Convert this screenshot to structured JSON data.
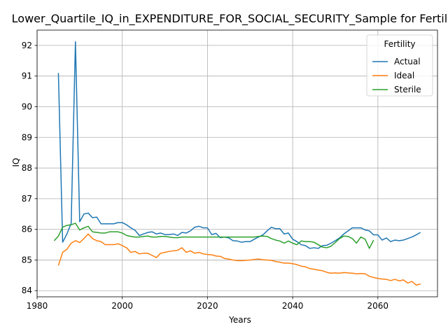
{
  "chart_data": {
    "type": "line",
    "title": "Lower_Quartile_IQ_in_EXPENDITURE_FOR_SOCIAL_SECURITY_Sample for Fertility",
    "xlabel": "Years",
    "ylabel": "IQ",
    "xlim": [
      1980,
      2074
    ],
    "ylim": [
      83.8,
      92.5
    ],
    "xticks": [
      1980,
      2000,
      2020,
      2040,
      2060
    ],
    "yticks": [
      84,
      85,
      86,
      87,
      88,
      89,
      90,
      91,
      92
    ],
    "grid": true,
    "legend": {
      "title": "Fertility",
      "placement": "top-right"
    },
    "series": [
      {
        "name": "Actual",
        "color": "#1f77b4",
        "x": [
          1985,
          1986,
          1987,
          1988,
          1989,
          1990,
          1991,
          1992,
          1993,
          1994,
          1995,
          1996,
          1997,
          1998,
          1999,
          2000,
          2001,
          2002,
          2003,
          2004,
          2005,
          2006,
          2007,
          2008,
          2009,
          2010,
          2011,
          2012,
          2013,
          2014,
          2015,
          2016,
          2017,
          2018,
          2019,
          2020,
          2021,
          2022,
          2023,
          2024,
          2025,
          2026,
          2027,
          2028,
          2029,
          2030,
          2031,
          2032,
          2033,
          2034,
          2035,
          2036,
          2037,
          2038,
          2039,
          2040,
          2041,
          2042,
          2043,
          2044,
          2045,
          2046,
          2047,
          2048,
          2049,
          2050,
          2051,
          2052,
          2053,
          2054,
          2055,
          2056,
          2057,
          2058,
          2059,
          2060,
          2061,
          2062,
          2063,
          2064,
          2065,
          2066,
          2067,
          2068,
          2069,
          2070
        ],
        "values": [
          91.1,
          85.58,
          85.85,
          86.2,
          92.12,
          86.25,
          86.5,
          86.53,
          86.38,
          86.4,
          86.18,
          86.18,
          86.18,
          86.18,
          86.22,
          86.22,
          86.15,
          86.05,
          85.97,
          85.8,
          85.85,
          85.9,
          85.92,
          85.85,
          85.88,
          85.83,
          85.83,
          85.85,
          85.8,
          85.9,
          85.88,
          85.95,
          86.07,
          86.1,
          86.05,
          86.05,
          85.83,
          85.87,
          85.73,
          85.75,
          85.72,
          85.63,
          85.62,
          85.58,
          85.6,
          85.6,
          85.68,
          85.75,
          85.82,
          85.95,
          86.07,
          86.02,
          86.02,
          85.85,
          85.88,
          85.68,
          85.6,
          85.5,
          85.47,
          85.38,
          85.4,
          85.38,
          85.47,
          85.48,
          85.55,
          85.63,
          85.72,
          85.85,
          85.95,
          86.05,
          86.05,
          86.05,
          85.98,
          85.95,
          85.82,
          85.82,
          85.65,
          85.72,
          85.6,
          85.65,
          85.63,
          85.65,
          85.7,
          85.75,
          85.82,
          85.9
        ]
      },
      {
        "name": "Ideal",
        "color": "#ff7f0e",
        "x": [
          1985,
          1986,
          1987,
          1988,
          1989,
          1990,
          1991,
          1992,
          1993,
          1994,
          1995,
          1996,
          1997,
          1998,
          1999,
          2000,
          2001,
          2002,
          2003,
          2004,
          2005,
          2006,
          2007,
          2008,
          2009,
          2010,
          2011,
          2012,
          2013,
          2014,
          2015,
          2016,
          2017,
          2018,
          2019,
          2020,
          2021,
          2022,
          2023,
          2024,
          2025,
          2026,
          2027,
          2028,
          2029,
          2030,
          2031,
          2032,
          2033,
          2034,
          2035,
          2036,
          2037,
          2038,
          2039,
          2040,
          2041,
          2042,
          2043,
          2044,
          2045,
          2046,
          2047,
          2048,
          2049,
          2050,
          2051,
          2052,
          2053,
          2054,
          2055,
          2056,
          2057,
          2058,
          2059,
          2060,
          2061,
          2062,
          2063,
          2064,
          2065,
          2066,
          2067,
          2068,
          2069,
          2070
        ],
        "values": [
          84.82,
          85.25,
          85.35,
          85.55,
          85.63,
          85.57,
          85.7,
          85.85,
          85.7,
          85.63,
          85.6,
          85.5,
          85.5,
          85.5,
          85.53,
          85.47,
          85.4,
          85.25,
          85.28,
          85.2,
          85.22,
          85.22,
          85.15,
          85.08,
          85.22,
          85.25,
          85.28,
          85.3,
          85.32,
          85.4,
          85.25,
          85.3,
          85.22,
          85.25,
          85.2,
          85.18,
          85.17,
          85.13,
          85.12,
          85.05,
          85.03,
          85.0,
          84.98,
          84.98,
          84.99,
          85.0,
          85.02,
          85.03,
          85.01,
          85.0,
          84.99,
          84.95,
          84.93,
          84.9,
          84.9,
          84.88,
          84.85,
          84.8,
          84.78,
          84.72,
          84.7,
          84.67,
          84.65,
          84.6,
          84.57,
          84.58,
          84.57,
          84.59,
          84.58,
          84.57,
          84.55,
          84.56,
          84.55,
          84.47,
          84.43,
          84.4,
          84.38,
          84.37,
          84.33,
          84.37,
          84.32,
          84.35,
          84.25,
          84.3,
          84.18,
          84.22
        ]
      },
      {
        "name": "Sterile",
        "color": "#2ca02c",
        "x": [
          1984,
          1985,
          1986,
          1987,
          1988,
          1989,
          1990,
          1991,
          1992,
          1993,
          1994,
          1995,
          1996,
          1997,
          1998,
          1999,
          2000,
          2001,
          2002,
          2003,
          2004,
          2005,
          2006,
          2007,
          2008,
          2009,
          2010,
          2011,
          2012,
          2013,
          2014,
          2015,
          2016,
          2017,
          2018,
          2019,
          2020,
          2021,
          2022,
          2023,
          2024,
          2025,
          2026,
          2027,
          2028,
          2029,
          2030,
          2031,
          2032,
          2033,
          2034,
          2035,
          2036,
          2037,
          2038,
          2039,
          2040,
          2041,
          2042,
          2043,
          2044,
          2045,
          2046,
          2047,
          2048,
          2049,
          2050,
          2051,
          2052,
          2053,
          2054,
          2055,
          2056,
          2057,
          2058,
          2059
        ],
        "values": [
          85.63,
          85.78,
          86.07,
          86.13,
          86.15,
          86.2,
          85.98,
          86.05,
          86.1,
          85.92,
          85.9,
          85.88,
          85.88,
          85.92,
          85.92,
          85.92,
          85.88,
          85.8,
          85.77,
          85.75,
          85.75,
          85.77,
          85.78,
          85.75,
          85.75,
          85.77,
          85.77,
          85.75,
          85.73,
          85.73,
          85.75,
          85.75,
          85.75,
          85.75,
          85.75,
          85.75,
          85.75,
          85.75,
          85.75,
          85.75,
          85.75,
          85.75,
          85.75,
          85.75,
          85.75,
          85.75,
          85.75,
          85.75,
          85.77,
          85.78,
          85.77,
          85.7,
          85.65,
          85.62,
          85.55,
          85.62,
          85.55,
          85.5,
          85.62,
          85.6,
          85.6,
          85.58,
          85.5,
          85.42,
          85.4,
          85.45,
          85.57,
          85.7,
          85.78,
          85.77,
          85.7,
          85.55,
          85.75,
          85.68,
          85.38,
          85.65
        ]
      }
    ]
  }
}
